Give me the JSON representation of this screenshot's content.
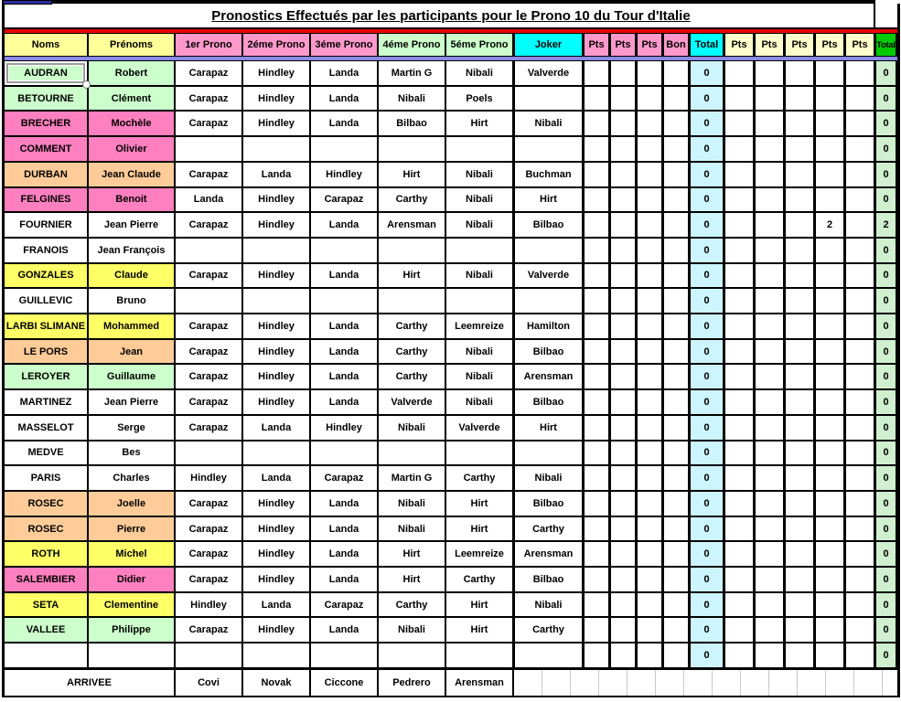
{
  "title": "Pronostics Effectués par les participants pour le Prono 10 du Tour d'Italie",
  "header": {
    "noms": "Noms",
    "prenoms": "Prénoms",
    "pronos": [
      "1er Prono",
      "2éme Prono",
      "3éme Prono",
      "4éme Prono",
      "5éme Prono"
    ],
    "joker": "Joker",
    "pts_bon": [
      "Pts",
      "Pts",
      "Pts",
      "Bon"
    ],
    "total_intermediate": "Total",
    "pts": [
      "Pts",
      "Pts",
      "Pts",
      "Pts",
      "Pts"
    ],
    "total_final": "Total"
  },
  "colors": {
    "header_yellow": "#FFFF99",
    "header_pink": "#FF99CC",
    "header_green": "#CCFFCC",
    "header_cyan": "#00FFFF",
    "header_cream": "#FFFFCC",
    "header_bright_green": "#00CC00",
    "body_total_cyan": "#CCF5FF",
    "body_total_green": "#CFEFCF",
    "separator_red": "#E80000",
    "separator_purple": "#8A8AE8",
    "row_fill": {
      "green": "#CCFFCC",
      "pink": "#FF80C0",
      "peach": "#FFCC99",
      "yellow": "#FFFF66",
      "white": "#FFFFFF"
    }
  },
  "rows": [
    {
      "nom": "AUDRAN",
      "prenom": "Robert",
      "fill": "green",
      "selected": true,
      "pronos": [
        "Carapaz",
        "Hindley",
        "Landa",
        "Martin G",
        "Nibali"
      ],
      "joker": "Valverde",
      "pts_bon": [
        "",
        "",
        "",
        ""
      ],
      "total1": "0",
      "pts": [
        "",
        "",
        "",
        "",
        ""
      ],
      "total2": "0"
    },
    {
      "nom": "BETOURNE",
      "prenom": "Clément",
      "fill": "green",
      "pronos": [
        "Carapaz",
        "Hindley",
        "Landa",
        "Nibali",
        "Poels"
      ],
      "joker": "",
      "pts_bon": [
        "",
        "",
        "",
        ""
      ],
      "total1": "0",
      "pts": [
        "",
        "",
        "",
        "",
        ""
      ],
      "total2": "0"
    },
    {
      "nom": "BRECHER",
      "prenom": "Mochèle",
      "fill": "pink",
      "pronos": [
        "Carapaz",
        "Hindley",
        "Landa",
        "Bilbao",
        "Hirt"
      ],
      "joker": "Nibali",
      "pts_bon": [
        "",
        "",
        "",
        ""
      ],
      "total1": "0",
      "pts": [
        "",
        "",
        "",
        "",
        ""
      ],
      "total2": "0"
    },
    {
      "nom": "COMMENT",
      "prenom": "Olivier",
      "fill": "pink",
      "pronos": [
        "",
        "",
        "",
        "",
        ""
      ],
      "joker": "",
      "pts_bon": [
        "",
        "",
        "",
        ""
      ],
      "total1": "0",
      "pts": [
        "",
        "",
        "",
        "",
        ""
      ],
      "total2": "0"
    },
    {
      "nom": "DURBAN",
      "prenom": "Jean Claude",
      "fill": "peach",
      "pronos": [
        "Carapaz",
        "Landa",
        "Hindley",
        "Hirt",
        "Nibali"
      ],
      "joker": "Buchman",
      "pts_bon": [
        "",
        "",
        "",
        ""
      ],
      "total1": "0",
      "pts": [
        "",
        "",
        "",
        "",
        ""
      ],
      "total2": "0"
    },
    {
      "nom": "FELGINES",
      "prenom": "Benoit",
      "fill": "pink",
      "pronos": [
        "Landa",
        "Hindley",
        "Carapaz",
        "Carthy",
        "Nibali"
      ],
      "joker": "Hirt",
      "pts_bon": [
        "",
        "",
        "",
        ""
      ],
      "total1": "0",
      "pts": [
        "",
        "",
        "",
        "",
        ""
      ],
      "total2": "0"
    },
    {
      "nom": "FOURNIER",
      "prenom": "Jean Pierre",
      "fill": "white",
      "pronos": [
        "Carapaz",
        "Hindley",
        "Landa",
        "Arensman",
        "Nibali"
      ],
      "joker": "Bilbao",
      "pts_bon": [
        "",
        "",
        "",
        ""
      ],
      "total1": "0",
      "pts": [
        "",
        "",
        "",
        "2",
        ""
      ],
      "total2": "2"
    },
    {
      "nom": "FRANOIS",
      "prenom": "Jean François",
      "fill": "white",
      "pronos": [
        "",
        "",
        "",
        "",
        ""
      ],
      "joker": "",
      "pts_bon": [
        "",
        "",
        "",
        ""
      ],
      "total1": "0",
      "pts": [
        "",
        "",
        "",
        "",
        ""
      ],
      "total2": "0"
    },
    {
      "nom": "GONZALES",
      "prenom": "Claude",
      "fill": "yellow",
      "pronos": [
        "Carapaz",
        "Hindley",
        "Landa",
        "Hirt",
        "Nibali"
      ],
      "joker": "Valverde",
      "pts_bon": [
        "",
        "",
        "",
        ""
      ],
      "total1": "0",
      "pts": [
        "",
        "",
        "",
        "",
        ""
      ],
      "total2": "0"
    },
    {
      "nom": "GUILLEVIC",
      "prenom": "Bruno",
      "fill": "white",
      "pronos": [
        "",
        "",
        "",
        "",
        ""
      ],
      "joker": "",
      "pts_bon": [
        "",
        "",
        "",
        ""
      ],
      "total1": "0",
      "pts": [
        "",
        "",
        "",
        "",
        ""
      ],
      "total2": "0"
    },
    {
      "nom": "LARBI SLIMANE",
      "prenom": "Mohammed",
      "fill": "yellow",
      "pronos": [
        "Carapaz",
        "Hindley",
        "Landa",
        "Carthy",
        "Leemreize"
      ],
      "joker": "Hamilton",
      "pts_bon": [
        "",
        "",
        "",
        ""
      ],
      "total1": "0",
      "pts": [
        "",
        "",
        "",
        "",
        ""
      ],
      "total2": "0"
    },
    {
      "nom": "LE PORS",
      "prenom": "Jean",
      "fill": "peach",
      "pronos": [
        "Carapaz",
        "Hindley",
        "Landa",
        "Carthy",
        "Nibali"
      ],
      "joker": "Bilbao",
      "pts_bon": [
        "",
        "",
        "",
        ""
      ],
      "total1": "0",
      "pts": [
        "",
        "",
        "",
        "",
        ""
      ],
      "total2": "0"
    },
    {
      "nom": "LEROYER",
      "prenom": "Guillaume",
      "fill": "green",
      "pronos": [
        "Carapaz",
        "Hindley",
        "Landa",
        "Carthy",
        "Nibali"
      ],
      "joker": "Arensman",
      "pts_bon": [
        "",
        "",
        "",
        ""
      ],
      "total1": "0",
      "pts": [
        "",
        "",
        "",
        "",
        ""
      ],
      "total2": "0"
    },
    {
      "nom": "MARTINEZ",
      "prenom": "Jean Pierre",
      "fill": "white",
      "pronos": [
        "Carapaz",
        "Hindley",
        "Landa",
        "Valverde",
        "Nibali"
      ],
      "joker": "Bilbao",
      "pts_bon": [
        "",
        "",
        "",
        ""
      ],
      "total1": "0",
      "pts": [
        "",
        "",
        "",
        "",
        ""
      ],
      "total2": "0"
    },
    {
      "nom": "MASSELOT",
      "prenom": "Serge",
      "fill": "white",
      "pronos": [
        "Carapaz",
        "Landa",
        "Hindley",
        "Nibali",
        "Valverde"
      ],
      "joker": "Hirt",
      "pts_bon": [
        "",
        "",
        "",
        ""
      ],
      "total1": "0",
      "pts": [
        "",
        "",
        "",
        "",
        ""
      ],
      "total2": "0"
    },
    {
      "nom": "MEDVE",
      "prenom": "Bes",
      "fill": "white",
      "pronos": [
        "",
        "",
        "",
        "",
        ""
      ],
      "joker": "",
      "pts_bon": [
        "",
        "",
        "",
        ""
      ],
      "total1": "0",
      "pts": [
        "",
        "",
        "",
        "",
        ""
      ],
      "total2": "0"
    },
    {
      "nom": "PARIS",
      "prenom": "Charles",
      "fill": "white",
      "pronos": [
        "Hindley",
        "Landa",
        "Carapaz",
        "Martin G",
        "Carthy"
      ],
      "joker": "Nibali",
      "pts_bon": [
        "",
        "",
        "",
        ""
      ],
      "total1": "0",
      "pts": [
        "",
        "",
        "",
        "",
        ""
      ],
      "total2": "0"
    },
    {
      "nom": "ROSEC",
      "prenom": "Joelle",
      "fill": "peach",
      "pronos": [
        "Carapaz",
        "Hindley",
        "Landa",
        "Nibali",
        "Hirt"
      ],
      "joker": "Bilbao",
      "pts_bon": [
        "",
        "",
        "",
        ""
      ],
      "total1": "0",
      "pts": [
        "",
        "",
        "",
        "",
        ""
      ],
      "total2": "0"
    },
    {
      "nom": "ROSEC",
      "prenom": "Pierre",
      "fill": "peach",
      "pronos": [
        "Carapaz",
        "Hindley",
        "Landa",
        "Nibali",
        "Hirt"
      ],
      "joker": "Carthy",
      "pts_bon": [
        "",
        "",
        "",
        ""
      ],
      "total1": "0",
      "pts": [
        "",
        "",
        "",
        "",
        ""
      ],
      "total2": "0"
    },
    {
      "nom": "ROTH",
      "prenom": "Michel",
      "fill": "yellow",
      "pronos": [
        "Carapaz",
        "Hindley",
        "Landa",
        "Hirt",
        "Leemreize"
      ],
      "joker": "Arensman",
      "pts_bon": [
        "",
        "",
        "",
        ""
      ],
      "total1": "0",
      "pts": [
        "",
        "",
        "",
        "",
        ""
      ],
      "total2": "0"
    },
    {
      "nom": "SALEMBIER",
      "prenom": "Didier",
      "fill": "pink",
      "pronos": [
        "Carapaz",
        "Hindley",
        "Landa",
        "Hirt",
        "Carthy"
      ],
      "joker": "Bilbao",
      "pts_bon": [
        "",
        "",
        "",
        ""
      ],
      "total1": "0",
      "pts": [
        "",
        "",
        "",
        "",
        ""
      ],
      "total2": "0"
    },
    {
      "nom": "SETA",
      "prenom": "Clementine",
      "fill": "yellow",
      "pronos": [
        "Hindley",
        "Landa",
        "Carapaz",
        "Carthy",
        "Hirt"
      ],
      "joker": "Nibali",
      "pts_bon": [
        "",
        "",
        "",
        ""
      ],
      "total1": "0",
      "pts": [
        "",
        "",
        "",
        "",
        ""
      ],
      "total2": "0"
    },
    {
      "nom": "VALLEE",
      "prenom": "Philippe",
      "fill": "green",
      "pronos": [
        "Carapaz",
        "Hindley",
        "Landa",
        "Nibali",
        "Hirt"
      ],
      "joker": "Carthy",
      "pts_bon": [
        "",
        "",
        "",
        ""
      ],
      "total1": "0",
      "pts": [
        "",
        "",
        "",
        "",
        ""
      ],
      "total2": "0"
    },
    {
      "nom": "",
      "prenom": "",
      "fill": "white",
      "pronos": [
        "",
        "",
        "",
        "",
        ""
      ],
      "joker": "",
      "pts_bon": [
        "",
        "",
        "",
        ""
      ],
      "total1": "0",
      "pts": [
        "",
        "",
        "",
        "",
        ""
      ],
      "total2": "0"
    }
  ],
  "arrivee": {
    "label": "ARRIVEE",
    "pronos": [
      "Covi",
      "Novak",
      "Ciccone",
      "Pedrero",
      "Arensman"
    ]
  }
}
